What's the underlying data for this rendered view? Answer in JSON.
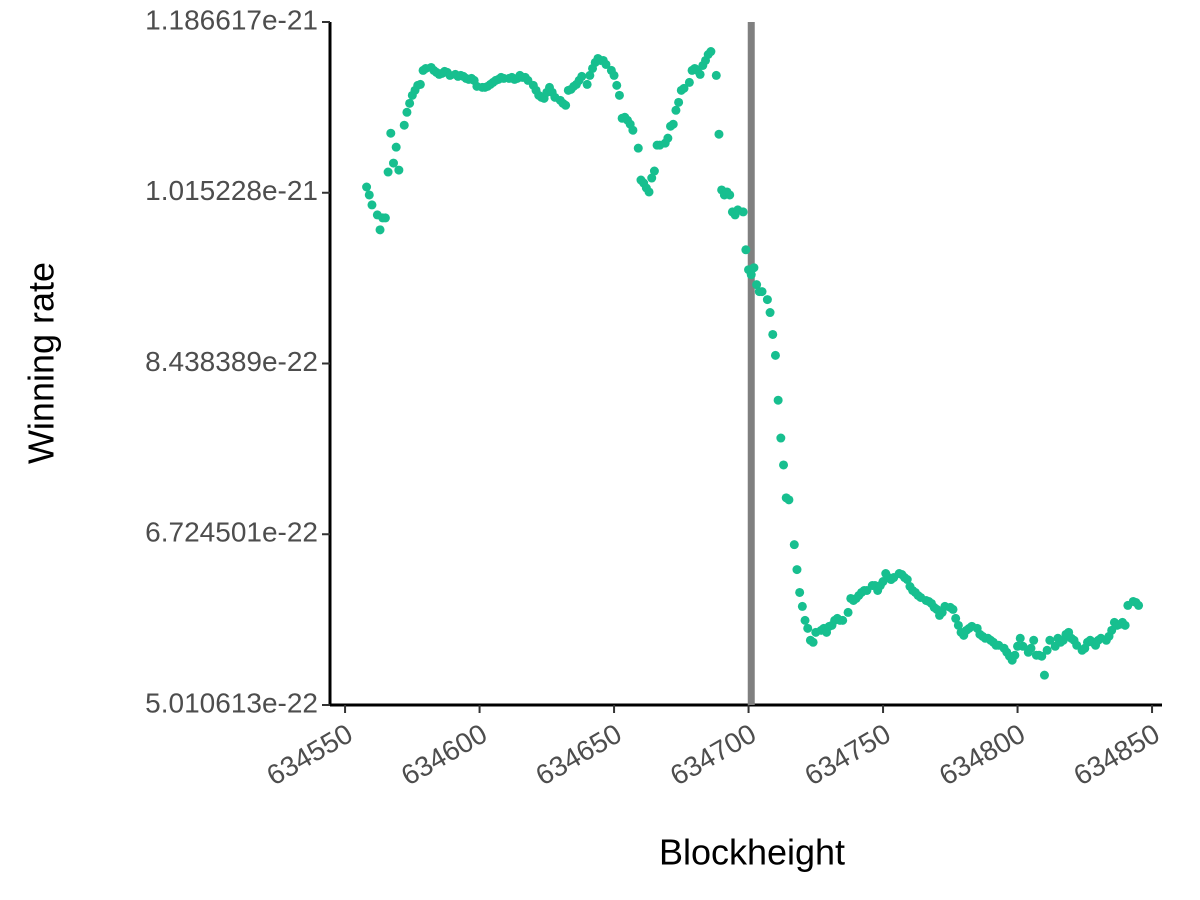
{
  "chart_data": {
    "type": "scatter",
    "x_label": "Blockheight",
    "y_label": "Winning rate",
    "xlim": [
      634544.4,
      634853.7
    ],
    "xticks": [
      634550,
      634600,
      634650,
      634700,
      634750,
      634800,
      634850
    ],
    "ylim": [
      5.010613e-22,
      1.186617e-21
    ],
    "yticks": [
      5.010613e-22,
      6.724501e-22,
      8.438389e-22,
      1.015228e-21,
      1.186617e-21
    ],
    "vline": {
      "x": 634701,
      "color": "#808080"
    },
    "series": [
      {
        "color": "#17bf8f",
        "x": [
          634558,
          634559,
          634560,
          634562,
          634563,
          634564,
          634565,
          634566,
          634567,
          634568,
          634569,
          634570,
          634572,
          634573,
          634574,
          634575,
          634576,
          634577,
          634578,
          634579,
          634580,
          634582,
          634583,
          634584,
          634585,
          634586,
          634587,
          634588,
          634589,
          634591,
          634592,
          634593,
          634594,
          634595,
          634596,
          634597,
          634598,
          634599,
          634601,
          634602,
          634603,
          634604,
          634605,
          634606,
          634607,
          634608,
          634609,
          634611,
          634612,
          634613,
          634614,
          634615,
          634616,
          634617,
          634618,
          634620,
          634621,
          634622,
          634623,
          634624,
          634625,
          634626,
          634627,
          634628,
          634630,
          634631,
          634632,
          634633,
          634634,
          634635,
          634636,
          634637,
          634638,
          634640,
          634641,
          634642,
          634643,
          634644,
          634645,
          634646,
          634647,
          634649,
          634650,
          634651,
          634652,
          634653,
          634654,
          634655,
          634656,
          634657,
          634659,
          634660,
          634661,
          634662,
          634663,
          634664,
          634665,
          634666,
          634667,
          634669,
          634670,
          634671,
          634672,
          634673,
          634674,
          634675,
          634676,
          634678,
          634679,
          634680,
          634681,
          634682,
          634683,
          634684,
          634685,
          634686,
          634688,
          634689,
          634690,
          634691,
          634692,
          634693,
          634694,
          634695,
          634696,
          634698,
          634699,
          634700,
          634701,
          634702,
          634703,
          634704,
          634705,
          634707,
          634708,
          634709,
          634710,
          634711,
          634712,
          634713,
          634714,
          634715,
          634717,
          634718,
          634719,
          634720,
          634721,
          634722,
          634723,
          634724,
          634725,
          634727,
          634728,
          634729,
          634730,
          634731,
          634732,
          634733,
          634734,
          634735,
          634737,
          634738,
          634739,
          634740,
          634741,
          634742,
          634743,
          634744,
          634746,
          634747,
          634748,
          634749,
          634750,
          634751,
          634752,
          634753,
          634754,
          634756,
          634757,
          634758,
          634759,
          634760,
          634761,
          634762,
          634763,
          634764,
          634766,
          634767,
          634768,
          634769,
          634770,
          634771,
          634772,
          634773,
          634775,
          634776,
          634777,
          634778,
          634779,
          634780,
          634781,
          634782,
          634783,
          634785,
          634786,
          634787,
          634788,
          634789,
          634790,
          634791,
          634792,
          634793,
          634795,
          634796,
          634797,
          634798,
          634799,
          634800,
          634801,
          634802,
          634804,
          634805,
          634806,
          634807,
          634808,
          634809,
          634810,
          634811,
          634812,
          634814,
          634815,
          634816,
          634817,
          634818,
          634819,
          634820,
          634821,
          634822,
          634824,
          634825,
          634826,
          634827,
          634828,
          634829,
          634830,
          634831,
          634833,
          634834,
          634835,
          634836,
          634837,
          634838,
          634839,
          634840,
          634841,
          634843,
          634844,
          634845
        ],
        "values": [
          1.021e-21,
          1.013e-21,
          1.003e-21,
          9.93e-22,
          9.78e-22,
          9.9e-22,
          9.9e-22,
          1.036e-21,
          1.075e-21,
          1.045e-21,
          1.061e-21,
          1.038e-21,
          1.083e-21,
          1.096e-21,
          1.105e-21,
          1.113e-21,
          1.118e-21,
          1.123e-21,
          1.124e-21,
          1.138e-21,
          1.14e-21,
          1.141e-21,
          1.138e-21,
          1.136e-21,
          1.134e-21,
          1.135e-21,
          1.137e-21,
          1.136e-21,
          1.133e-21,
          1.134e-21,
          1.132e-21,
          1.133e-21,
          1.132e-21,
          1.13e-21,
          1.129e-21,
          1.13e-21,
          1.128e-21,
          1.122e-21,
          1.121e-21,
          1.121e-21,
          1.122e-21,
          1.124e-21,
          1.126e-21,
          1.128e-21,
          1.129e-21,
          1.131e-21,
          1.13e-21,
          1.13e-21,
          1.131e-21,
          1.129e-21,
          1.13e-21,
          1.133e-21,
          1.131e-21,
          1.131e-21,
          1.128e-21,
          1.123e-21,
          1.118e-21,
          1.113e-21,
          1.111e-21,
          1.11e-21,
          1.116e-21,
          1.121e-21,
          1.116e-21,
          1.111e-21,
          1.108e-21,
          1.105e-21,
          1.103e-21,
          1.118e-21,
          1.119e-21,
          1.122e-21,
          1.124e-21,
          1.128e-21,
          1.132e-21,
          1.124e-21,
          1.133e-21,
          1.14e-21,
          1.146e-21,
          1.15e-21,
          1.148e-21,
          1.148e-21,
          1.144e-21,
          1.138e-21,
          1.133e-21,
          1.123e-21,
          1.113e-21,
          1.09e-21,
          1.091e-21,
          1.088e-21,
          1.084e-21,
          1.078e-21,
          1.06e-21,
          1.028e-21,
          1.025e-21,
          1.02e-21,
          1.016e-21,
          1.03e-21,
          1.037e-21,
          1.063e-21,
          1.063e-21,
          1.065e-21,
          1.07e-21,
          1.082e-21,
          1.084e-21,
          1.098e-21,
          1.106e-21,
          1.118e-21,
          1.12e-21,
          1.126e-21,
          1.138e-21,
          1.14e-21,
          1.138e-21,
          1.134e-21,
          1.143e-21,
          1.148e-21,
          1.154e-21,
          1.157e-21,
          1.133e-21,
          1.074e-21,
          1.018e-21,
          1.013e-21,
          1.016e-21,
          1.013e-21,
          9.96e-22,
          9.93e-22,
          9.98e-22,
          9.96e-22,
          9.58e-22,
          9.38e-22,
          9.33e-22,
          9.4e-22,
          9.23e-22,
          9.16e-22,
          9.16e-22,
          9.08e-22,
          8.95e-22,
          8.73e-22,
          8.52e-22,
          8.07e-22,
          7.69e-22,
          7.42e-22,
          7.09e-22,
          7.07e-22,
          6.62e-22,
          6.37e-22,
          6.14e-22,
          6e-22,
          5.86e-22,
          5.78e-22,
          5.66e-22,
          5.64e-22,
          5.74e-22,
          5.76e-22,
          5.78e-22,
          5.74e-22,
          5.8e-22,
          5.81e-22,
          5.86e-22,
          5.88e-22,
          5.86e-22,
          5.86e-22,
          5.94e-22,
          6.08e-22,
          6.06e-22,
          6.08e-22,
          6.11e-22,
          6.14e-22,
          6.16e-22,
          6.16e-22,
          6.21e-22,
          6.21e-22,
          6.16e-22,
          6.21e-22,
          6.25e-22,
          6.33e-22,
          6.29e-22,
          6.27e-22,
          6.29e-22,
          6.33e-22,
          6.32e-22,
          6.29e-22,
          6.27e-22,
          6.2e-22,
          6.16e-22,
          6.14e-22,
          6.11e-22,
          6.09e-22,
          6.06e-22,
          6.05e-22,
          6.03e-22,
          5.99e-22,
          5.97e-22,
          5.91e-22,
          5.94e-22,
          6e-22,
          5.99e-22,
          5.97e-22,
          5.88e-22,
          5.81e-22,
          5.74e-22,
          5.71e-22,
          5.76e-22,
          5.78e-22,
          5.8e-22,
          5.78e-22,
          5.72e-22,
          5.7e-22,
          5.68e-22,
          5.68e-22,
          5.66e-22,
          5.64e-22,
          5.61e-22,
          5.61e-22,
          5.58e-22,
          5.54e-22,
          5.5e-22,
          5.46e-22,
          5.51e-22,
          5.6e-22,
          5.68e-22,
          5.6e-22,
          5.54e-22,
          5.58e-22,
          5.66e-22,
          5.51e-22,
          5.51e-22,
          5.5e-22,
          5.31e-22,
          5.56e-22,
          5.66e-22,
          5.6e-22,
          5.68e-22,
          5.64e-22,
          5.66e-22,
          5.72e-22,
          5.74e-22,
          5.68e-22,
          5.66e-22,
          5.61e-22,
          5.56e-22,
          5.58e-22,
          5.64e-22,
          5.66e-22,
          5.64e-22,
          5.61e-22,
          5.66e-22,
          5.68e-22,
          5.66e-22,
          5.7e-22,
          5.76e-22,
          5.84e-22,
          5.81e-22,
          5.82e-22,
          5.84e-22,
          5.81e-22,
          6.01e-22,
          6.05e-22,
          6.04e-22,
          6.01e-22
        ]
      }
    ]
  }
}
